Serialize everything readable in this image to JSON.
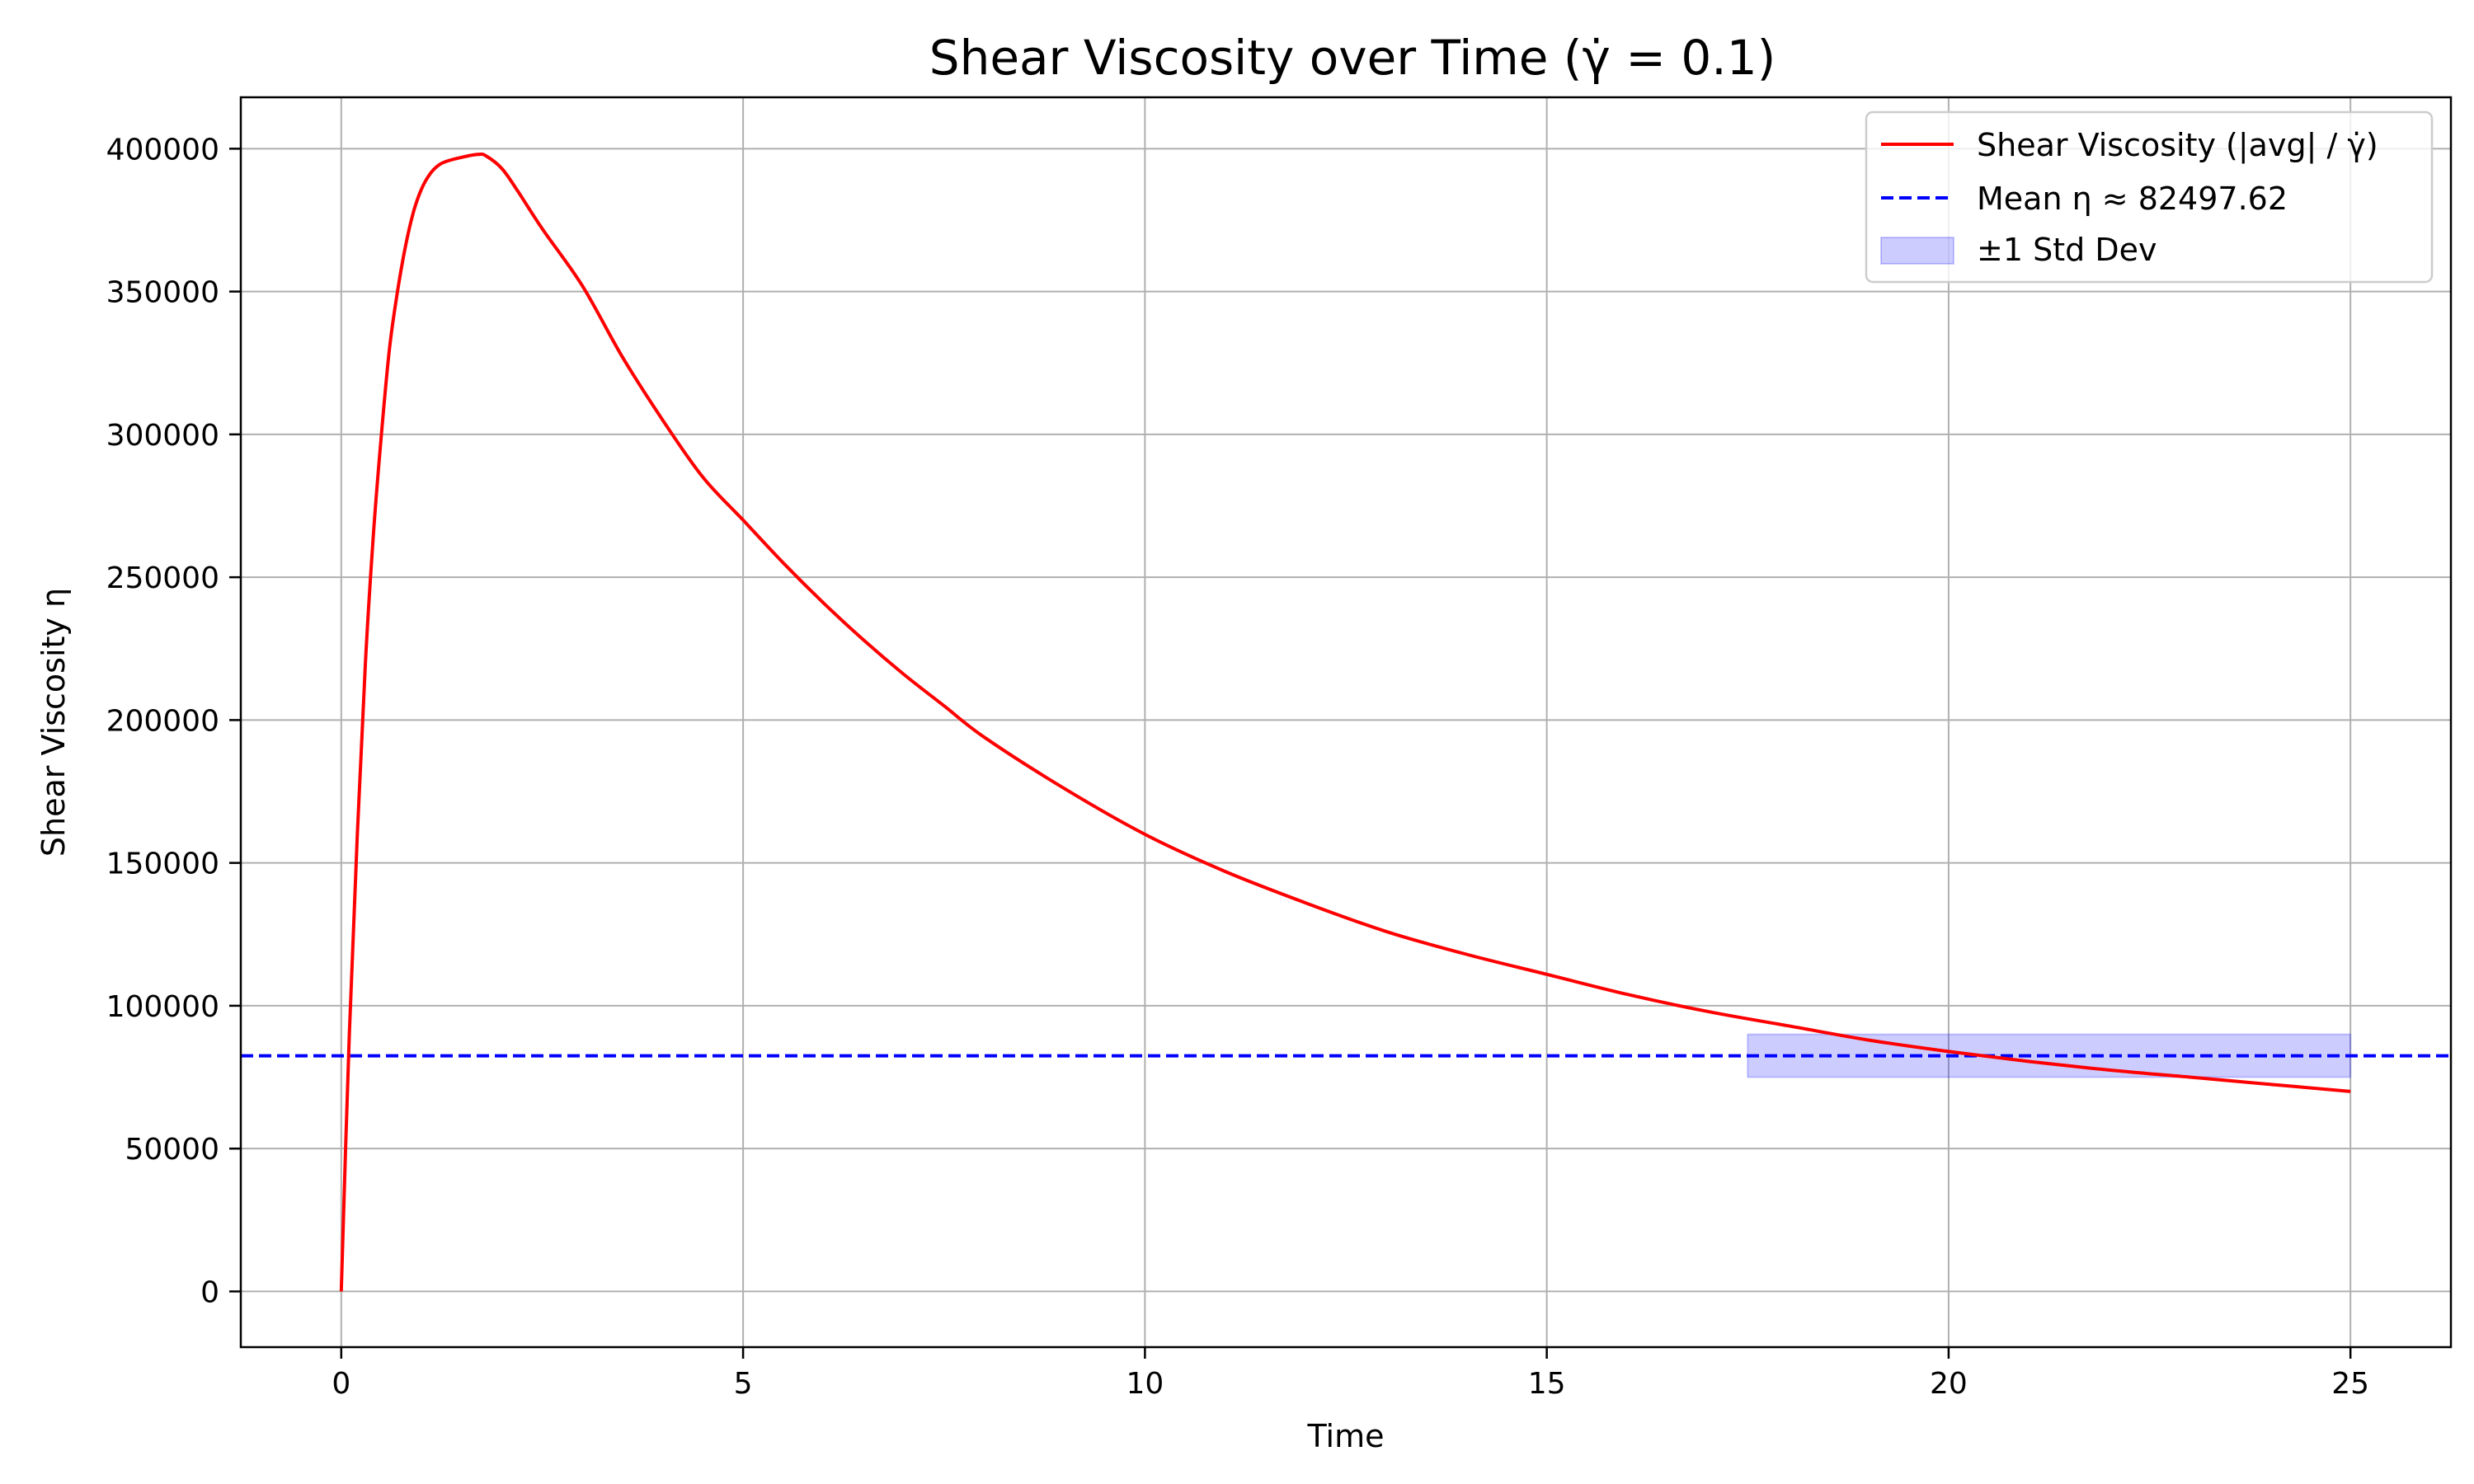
{
  "chart_data": {
    "type": "line",
    "title": "Shear Viscosity over Time (γ̇ = 0.1)",
    "xlabel": "Time",
    "ylabel": "Shear Viscosity η",
    "xlim": [
      -1.25,
      26.25
    ],
    "ylim": [
      -19500,
      418000
    ],
    "xticks": [
      0,
      5,
      10,
      15,
      20,
      25
    ],
    "yticks": [
      0,
      50000,
      100000,
      150000,
      200000,
      250000,
      300000,
      350000,
      400000
    ],
    "grid": true,
    "legend_position": "top-right",
    "legend": [
      {
        "label": "Shear Viscosity (|avg| / γ̇)",
        "kind": "line",
        "color": "#ff0000"
      },
      {
        "label": "Mean η ≈ 82497.62",
        "kind": "dashed",
        "color": "#0000ff"
      },
      {
        "label": "±1 Std Dev",
        "kind": "patch",
        "color": "#0000ff"
      }
    ],
    "series": [
      {
        "name": "Shear Viscosity (|avg| / γ̇)",
        "color": "#ff0000",
        "x": [
          0,
          0.1,
          0.2,
          0.3,
          0.4,
          0.5,
          0.6,
          0.7,
          0.8,
          0.9,
          1.0,
          1.1,
          1.2,
          1.3,
          1.5,
          1.7,
          1.8,
          2.0,
          2.2,
          2.5,
          3.0,
          3.5,
          4.0,
          4.5,
          5.0,
          5.5,
          6.0,
          6.5,
          7.0,
          7.5,
          8.0,
          9.0,
          10.0,
          11.0,
          12.0,
          13.0,
          14.0,
          15.0,
          16.0,
          17.0,
          18.0,
          19.0,
          20.0,
          21.0,
          22.0,
          23.0,
          24.0,
          25.0
        ],
        "y": [
          0,
          90000,
          160000,
          220000,
          265000,
          300000,
          330000,
          350000,
          366000,
          378000,
          386000,
          391000,
          394000,
          395500,
          397000,
          398000,
          397500,
          393000,
          385000,
          372000,
          352000,
          327000,
          305000,
          285000,
          270000,
          255000,
          241000,
          228000,
          216000,
          205000,
          194000,
          176000,
          160000,
          147000,
          136000,
          126000,
          118000,
          111000,
          104000,
          98000,
          93000,
          88000,
          84000,
          80500,
          77500,
          75000,
          72500,
          70000
        ]
      }
    ],
    "mean_line": {
      "label": "Mean η ≈ 82497.62",
      "value": 82497.62,
      "color": "#0000ff"
    },
    "std_band": {
      "label": "±1 Std Dev",
      "x_range": [
        17.5,
        25
      ],
      "y_range": [
        75000,
        90000
      ],
      "color": "#0000ff"
    }
  }
}
